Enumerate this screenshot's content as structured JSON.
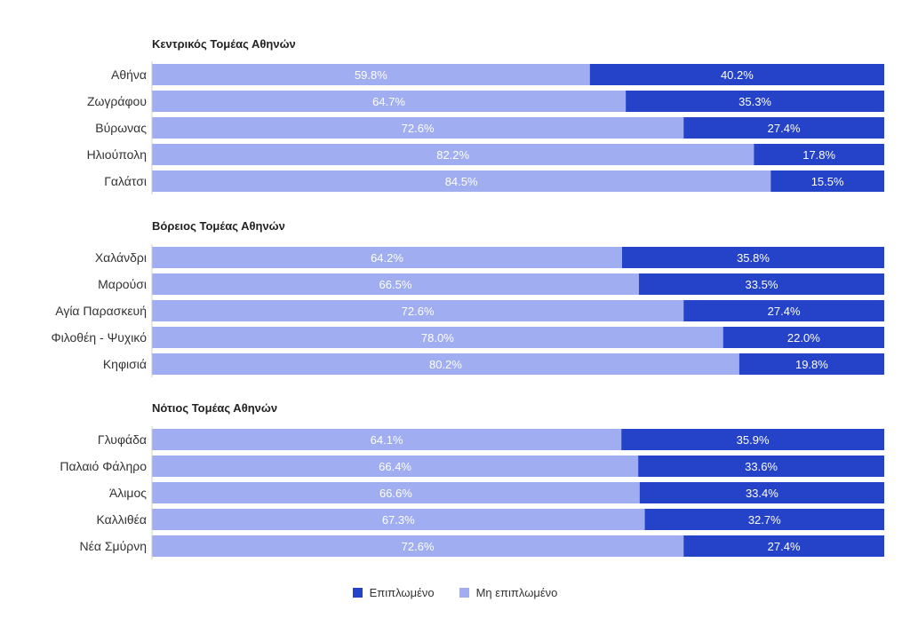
{
  "chart_data": {
    "type": "bar",
    "stacked": "100%",
    "orientation": "horizontal",
    "colors": {
      "furnished": "#2443c8",
      "unfurnished": "#a0adf0"
    },
    "legend": {
      "placement": "bottom-center",
      "items": [
        {
          "key": "furnished",
          "label": "Επιπλωμένο"
        },
        {
          "key": "unfurnished",
          "label": "Μη επιπλωμένο"
        }
      ]
    },
    "groups": [
      {
        "title": "Κεντρικός Τομέας Αθηνών",
        "rows": [
          {
            "label": "Αθήνα",
            "unfurnished": "59.8%",
            "furnished": "40.2%",
            "u": 59.8
          },
          {
            "label": "Ζωγράφου",
            "unfurnished": "64.7%",
            "furnished": "35.3%",
            "u": 64.7
          },
          {
            "label": "Βύρωνας",
            "unfurnished": "72.6%",
            "furnished": "27.4%",
            "u": 72.6
          },
          {
            "label": "Ηλιούπολη",
            "unfurnished": "82.2%",
            "furnished": "17.8%",
            "u": 82.2
          },
          {
            "label": "Γαλάτσι",
            "unfurnished": "84.5%",
            "furnished": "15.5%",
            "u": 84.5
          }
        ]
      },
      {
        "title": "Βόρειος Τομέας Αθηνών",
        "rows": [
          {
            "label": "Χαλάνδρι",
            "unfurnished": "64.2%",
            "furnished": "35.8%",
            "u": 64.2
          },
          {
            "label": "Μαρούσι",
            "unfurnished": "66.5%",
            "furnished": "33.5%",
            "u": 66.5
          },
          {
            "label": "Αγία Παρασκευή",
            "unfurnished": "72.6%",
            "furnished": "27.4%",
            "u": 72.6
          },
          {
            "label": "Φιλοθέη - Ψυχικό",
            "unfurnished": "78.0%",
            "furnished": "22.0%",
            "u": 78.0
          },
          {
            "label": "Κηφισιά",
            "unfurnished": "80.2%",
            "furnished": "19.8%",
            "u": 80.2
          }
        ]
      },
      {
        "title": "Νότιος Τομέας Αθηνών",
        "rows": [
          {
            "label": "Γλυφάδα",
            "unfurnished": "64.1%",
            "furnished": "35.9%",
            "u": 64.1
          },
          {
            "label": "Παλαιό Φάληρο",
            "unfurnished": "66.4%",
            "furnished": "33.6%",
            "u": 66.4
          },
          {
            "label": "Άλιμος",
            "unfurnished": "66.6%",
            "furnished": "33.4%",
            "u": 66.6
          },
          {
            "label": "Καλλιθέα",
            "unfurnished": "67.3%",
            "furnished": "32.7%",
            "u": 67.3
          },
          {
            "label": "Νέα Σμύρνη",
            "unfurnished": "72.6%",
            "furnished": "27.4%",
            "u": 72.6
          }
        ]
      }
    ]
  }
}
